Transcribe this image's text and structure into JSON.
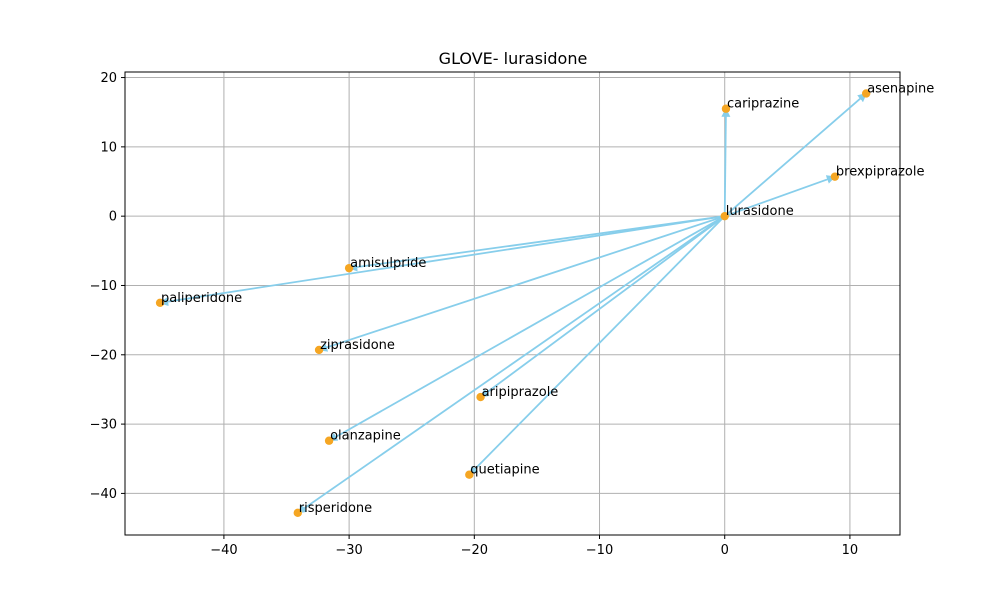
{
  "chart_data": {
    "type": "scatter",
    "title": "GLOVE- lurasidone",
    "xlabel": "",
    "ylabel": "",
    "xlim": [
      -47.9,
      14.0
    ],
    "ylim": [
      -46.0,
      20.8
    ],
    "xticks": [
      -40,
      -30,
      -20,
      -10,
      0,
      10
    ],
    "yticks": [
      -40,
      -30,
      -20,
      -10,
      0,
      10,
      20
    ],
    "grid": true,
    "point_color": "#f5a623",
    "arrow_color": "#87ceeb",
    "origin": {
      "label": "lurasidone",
      "x": 0.0,
      "y": 0.0
    },
    "points": [
      {
        "label": "asenapine",
        "x": 11.3,
        "y": 17.7
      },
      {
        "label": "cariprazine",
        "x": 0.1,
        "y": 15.5
      },
      {
        "label": "brexpiprazole",
        "x": 8.8,
        "y": 5.7
      },
      {
        "label": "amisulpride",
        "x": -30.0,
        "y": -7.5
      },
      {
        "label": "paliperidone",
        "x": -45.1,
        "y": -12.5
      },
      {
        "label": "ziprasidone",
        "x": -32.4,
        "y": -19.3
      },
      {
        "label": "aripiprazole",
        "x": -19.5,
        "y": -26.1
      },
      {
        "label": "olanzapine",
        "x": -31.6,
        "y": -32.4
      },
      {
        "label": "quetiapine",
        "x": -20.4,
        "y": -37.3
      },
      {
        "label": "risperidone",
        "x": -34.1,
        "y": -42.8
      }
    ]
  }
}
